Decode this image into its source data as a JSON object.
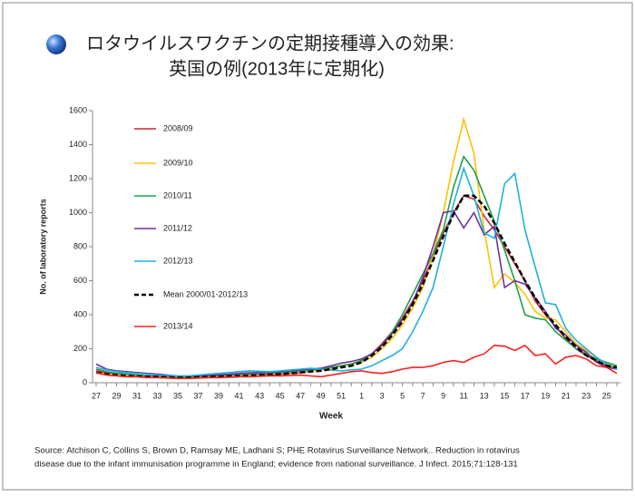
{
  "chart_data": {
    "type": "line",
    "title": [
      "ロタウイルスワクチンの定期接種導入の効果:",
      "英国の例(2013年に定期化)"
    ],
    "y_label": "No. of laboratory reports",
    "x_label": "Week",
    "source": [
      "Source: Atchison C, Collins S, Brown D, Ramsay ME, Ladhani S; PHE Rotavirus Surveillance Network.. Reduction in rotavirus",
      "disease due to the infant immunisation programme  in England; evidence from national surveillance. J Infect. 2015;71:128-131"
    ],
    "categories": [
      "27",
      null,
      "29",
      null,
      "31",
      null,
      "33",
      null,
      "35",
      null,
      "37",
      null,
      "39",
      null,
      "41",
      null,
      "43",
      null,
      "45",
      null,
      "47",
      null,
      "49",
      null,
      "51",
      null,
      "1",
      null,
      "3",
      null,
      "5",
      null,
      "7",
      null,
      "9",
      null,
      "11",
      null,
      "13",
      null,
      "15",
      null,
      "17",
      null,
      "19",
      null,
      "21",
      null,
      "23",
      null,
      "25",
      null
    ],
    "ylim": [
      0,
      1600
    ],
    "yticks": [
      0,
      200,
      400,
      600,
      800,
      1000,
      1200,
      1400,
      1600
    ],
    "series": [
      {
        "name": "2008/09",
        "color": "#c0282f",
        "values": [
          70,
          60,
          55,
          50,
          45,
          40,
          38,
          35,
          32,
          30,
          32,
          35,
          38,
          40,
          45,
          50,
          48,
          45,
          50,
          55,
          60,
          70,
          80,
          90,
          100,
          110,
          130,
          170,
          230,
          300,
          380,
          480,
          600,
          740,
          880,
          1000,
          1100,
          1080,
          980,
          900,
          800,
          700,
          600,
          480,
          400,
          330,
          260,
          200,
          160,
          130,
          100,
          80
        ]
      },
      {
        "name": "2009/10",
        "color": "#ffc000",
        "values": [
          60,
          50,
          45,
          40,
          40,
          35,
          35,
          30,
          30,
          30,
          35,
          35,
          40,
          40,
          45,
          45,
          50,
          50,
          55,
          60,
          65,
          70,
          75,
          85,
          95,
          110,
          120,
          150,
          200,
          260,
          340,
          440,
          560,
          750,
          1000,
          1300,
          1550,
          1350,
          900,
          560,
          640,
          590,
          520,
          420,
          380,
          370,
          300,
          230,
          190,
          150,
          110,
          90
        ]
      },
      {
        "name": "2010/11",
        "color": "#20a050",
        "values": [
          80,
          65,
          55,
          50,
          45,
          40,
          40,
          38,
          35,
          35,
          38,
          40,
          42,
          45,
          48,
          50,
          52,
          55,
          60,
          65,
          70,
          75,
          80,
          90,
          100,
          110,
          130,
          170,
          220,
          300,
          400,
          520,
          640,
          760,
          900,
          1150,
          1330,
          1250,
          1100,
          950,
          780,
          600,
          400,
          380,
          370,
          300,
          250,
          200,
          170,
          140,
          120,
          100
        ]
      },
      {
        "name": "2011/12",
        "color": "#7030a0",
        "values": [
          110,
          80,
          70,
          65,
          60,
          55,
          50,
          45,
          40,
          40,
          42,
          45,
          48,
          50,
          55,
          58,
          60,
          62,
          65,
          70,
          75,
          80,
          85,
          100,
          115,
          125,
          140,
          170,
          220,
          290,
          370,
          470,
          620,
          800,
          1000,
          1010,
          910,
          1000,
          870,
          920,
          560,
          600,
          580,
          500,
          420,
          320,
          280,
          220,
          180,
          120,
          90,
          80
        ]
      },
      {
        "name": "2012/13",
        "color": "#1fb0e0",
        "values": [
          90,
          75,
          65,
          60,
          55,
          50,
          45,
          42,
          40,
          40,
          45,
          50,
          55,
          60,
          65,
          70,
          68,
          65,
          70,
          75,
          80,
          85,
          80,
          75,
          70,
          75,
          80,
          100,
          130,
          160,
          200,
          300,
          420,
          560,
          800,
          1050,
          1260,
          1100,
          880,
          850,
          1170,
          1230,
          900,
          680,
          470,
          460,
          320,
          250,
          200,
          150,
          110,
          80
        ]
      },
      {
        "name": "Mean 2000/01-2012/13",
        "color": "#000000",
        "dashed": true,
        "values": [
          60,
          50,
          45,
          40,
          38,
          35,
          35,
          32,
          30,
          30,
          32,
          35,
          35,
          38,
          40,
          42,
          45,
          48,
          50,
          55,
          60,
          65,
          70,
          80,
          90,
          100,
          120,
          160,
          210,
          280,
          360,
          460,
          580,
          720,
          860,
          990,
          1100,
          1100,
          1040,
          940,
          820,
          710,
          600,
          500,
          410,
          340,
          270,
          210,
          160,
          130,
          100,
          90
        ]
      },
      {
        "name": "2013/14",
        "color": "#ff2020",
        "values": [
          60,
          45,
          40,
          35,
          35,
          30,
          30,
          28,
          25,
          25,
          28,
          30,
          30,
          32,
          35,
          35,
          38,
          40,
          40,
          42,
          45,
          40,
          35,
          45,
          55,
          65,
          70,
          60,
          55,
          65,
          80,
          90,
          90,
          100,
          120,
          130,
          120,
          150,
          170,
          220,
          215,
          190,
          220,
          160,
          170,
          110,
          150,
          160,
          140,
          100,
          90,
          55
        ]
      }
    ]
  }
}
